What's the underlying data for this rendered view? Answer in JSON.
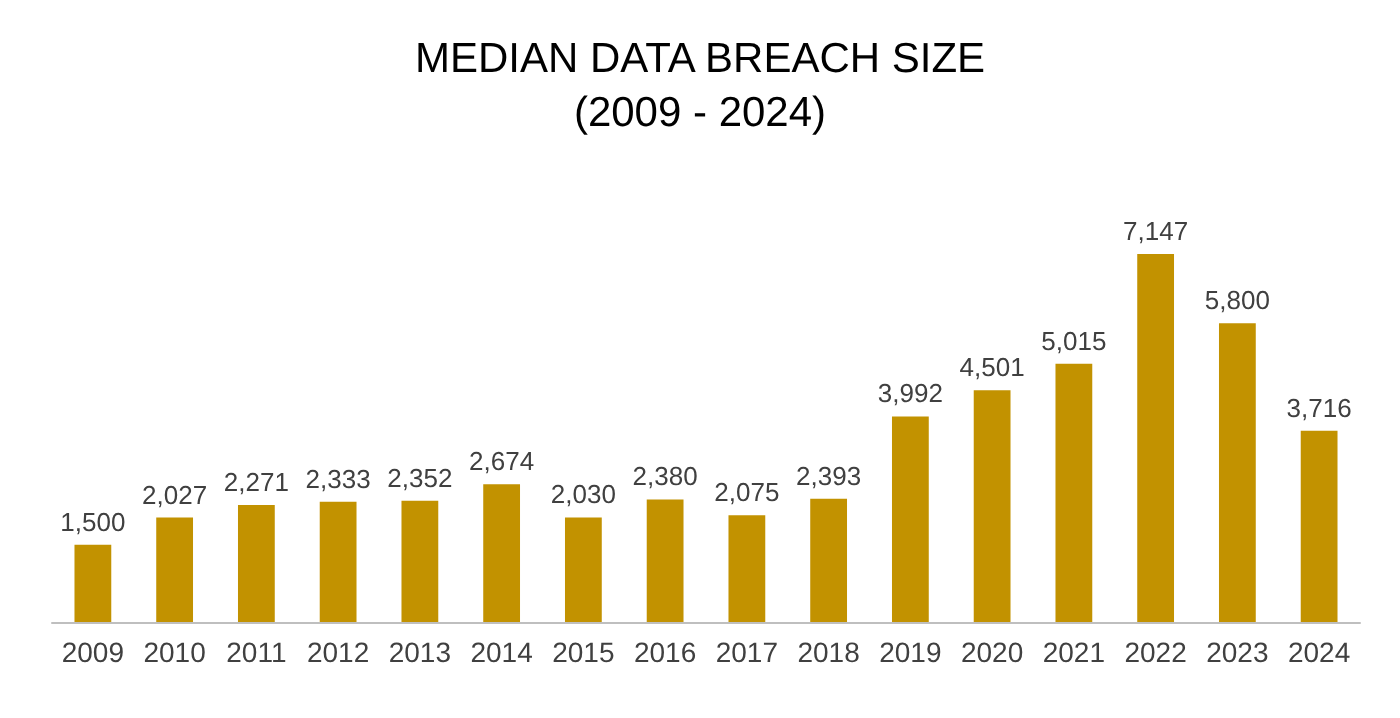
{
  "chart_data": {
    "type": "bar",
    "title": "MEDIAN DATA BREACH SIZE",
    "subtitle": "(2009 - 2024)",
    "categories": [
      "2009",
      "2010",
      "2011",
      "2012",
      "2013",
      "2014",
      "2015",
      "2016",
      "2017",
      "2018",
      "2019",
      "2020",
      "2021",
      "2022",
      "2023",
      "2024"
    ],
    "values": [
      1500,
      2027,
      2271,
      2333,
      2352,
      2674,
      2030,
      2380,
      2075,
      2393,
      3992,
      4501,
      5015,
      7147,
      5800,
      3716
    ],
    "value_labels": [
      "1,500",
      "2,027",
      "2,271",
      "2,333",
      "2,352",
      "2,674",
      "2,030",
      "2,380",
      "2,075",
      "2,393",
      "3,992",
      "4,501",
      "5,015",
      "7,147",
      "5,800",
      "3,716"
    ],
    "color": "#c29200"
  }
}
